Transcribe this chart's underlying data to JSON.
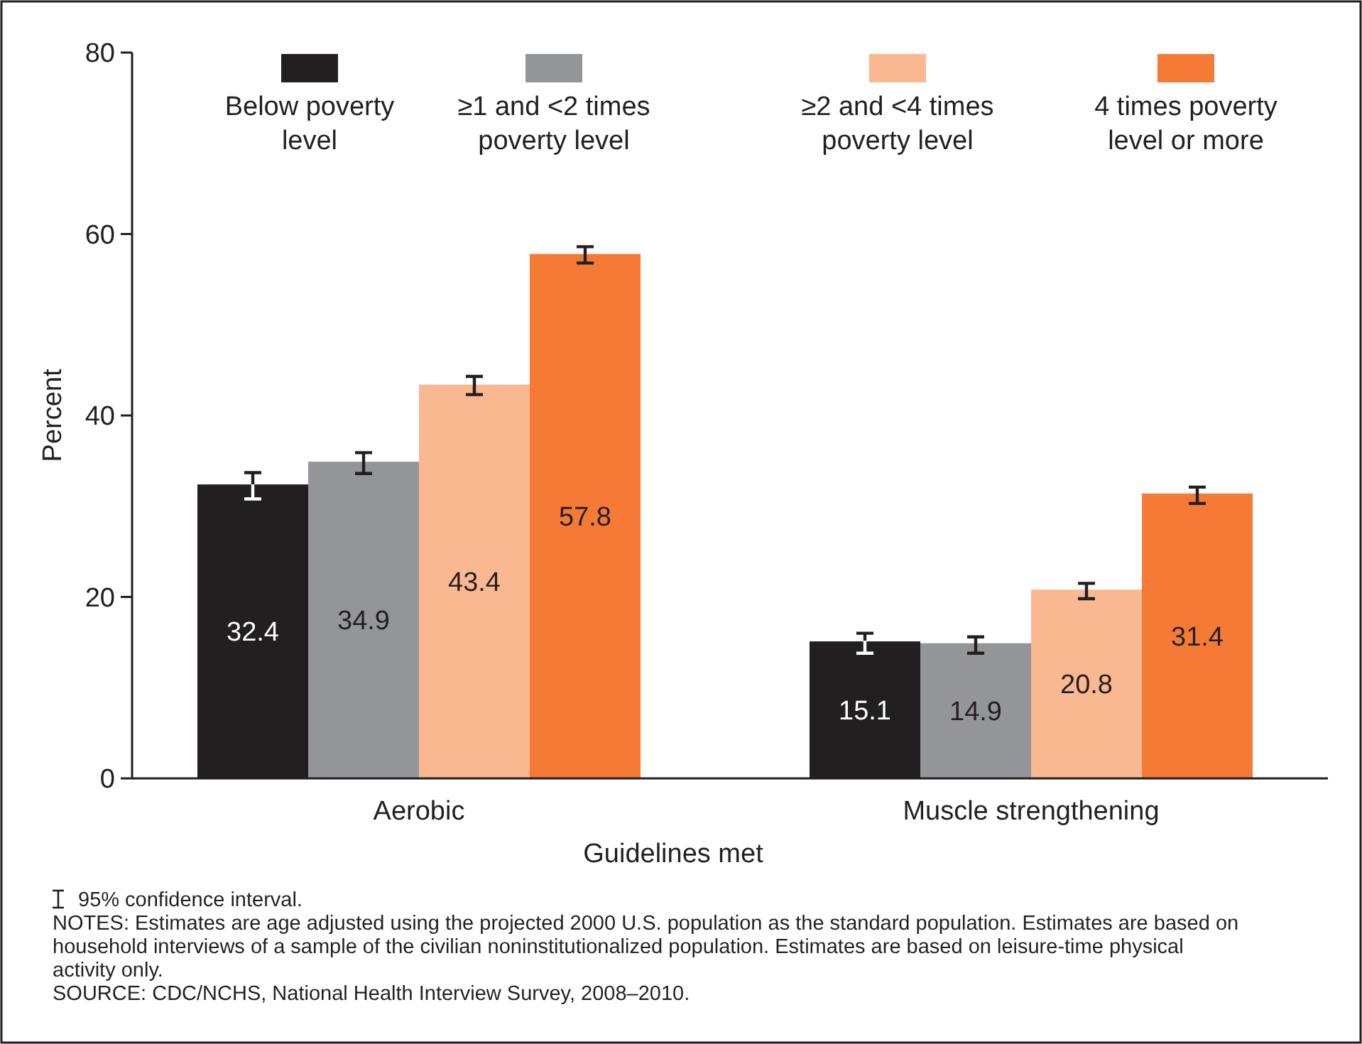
{
  "chart_data": {
    "type": "bar",
    "xlabel": "Guidelines met",
    "ylabel": "Percent",
    "categories": [
      "Aerobic",
      "Muscle strengthening"
    ],
    "series": [
      {
        "name": "Below poverty level",
        "color": "#231f20",
        "values": [
          32.4,
          15.1
        ],
        "errors": [
          [
            30.8,
            33.7
          ],
          [
            13.8,
            16.0
          ]
        ]
      },
      {
        "name": "≥1 and <2 times poverty level",
        "color": "#939598",
        "values": [
          34.9,
          14.9
        ],
        "errors": [
          [
            33.6,
            35.9
          ],
          [
            13.8,
            15.6
          ]
        ]
      },
      {
        "name": "≥2 and <4 times poverty level",
        "color": "#f9b890",
        "values": [
          43.4,
          20.8
        ],
        "errors": [
          [
            42.3,
            44.3
          ],
          [
            19.8,
            21.5
          ]
        ]
      },
      {
        "name": "4 times poverty level or more",
        "color": "#f47a36",
        "values": [
          57.8,
          31.4
        ],
        "errors": [
          [
            56.8,
            58.6
          ],
          [
            30.3,
            32.1
          ]
        ]
      }
    ],
    "ylim": [
      0,
      80
    ],
    "yticks": [
      0,
      20,
      40,
      60,
      80
    ],
    "grid": false,
    "legend": "top",
    "data_labels": true,
    "annotations": [
      "95% confidence interval.",
      "NOTES: Estimates are age adjusted using the projected 2000 U.S. population as the standard population. Estimates are based on household interviews of a sample of the civilian noninstitutionalized population. Estimates are based on leisure-time physical activity only.",
      "SOURCE: CDC/NCHS, National Health Interview Survey, 2008–2010."
    ]
  }
}
